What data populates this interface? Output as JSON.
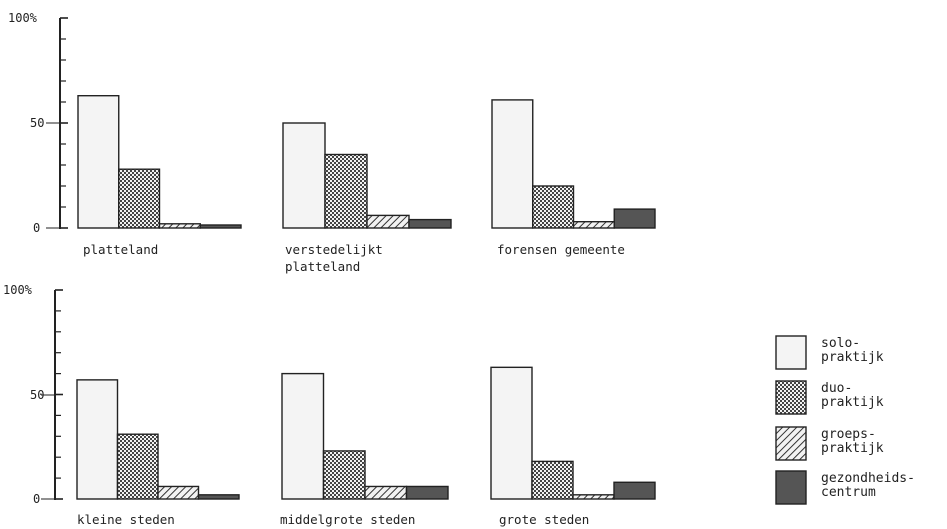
{
  "chart_data": {
    "type": "bar",
    "y_ticks": [
      "100%",
      "50",
      "0"
    ],
    "ylim": [
      0,
      100
    ],
    "series": [
      {
        "name": "solo-praktijk",
        "label_lines": [
          "solo-",
          "praktijk"
        ],
        "pattern": "solo"
      },
      {
        "name": "duo-praktijk",
        "label_lines": [
          "duo-",
          "praktijk"
        ],
        "pattern": "duo"
      },
      {
        "name": "groeps-praktijk",
        "label_lines": [
          "groeps-",
          "praktijk"
        ],
        "pattern": "groeps"
      },
      {
        "name": "gezondheids-centrum",
        "label_lines": [
          "gezondheids-",
          "centrum"
        ],
        "pattern": "gezond"
      }
    ],
    "groups": [
      {
        "label_lines": [
          "platteland"
        ],
        "values": [
          63,
          28,
          2,
          1
        ]
      },
      {
        "label_lines": [
          "verstedelijkt",
          "platteland"
        ],
        "values": [
          50,
          35,
          6,
          4
        ]
      },
      {
        "label_lines": [
          "forensen gemeente"
        ],
        "values": [
          61,
          20,
          3,
          9
        ]
      },
      {
        "label_lines": [
          "kleine steden"
        ],
        "values": [
          57,
          31,
          6,
          2
        ]
      },
      {
        "label_lines": [
          "middelgrote steden"
        ],
        "values": [
          60,
          23,
          6,
          6
        ]
      },
      {
        "label_lines": [
          "grote steden"
        ],
        "values": [
          63,
          18,
          2,
          8
        ]
      }
    ],
    "grid": false,
    "legend_position": "bottom-right"
  }
}
